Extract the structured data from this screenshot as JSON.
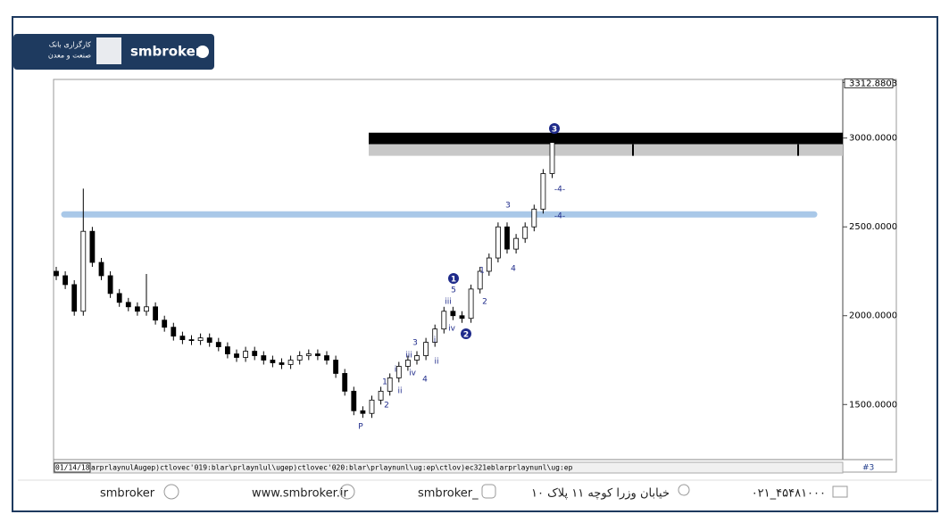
{
  "header": {
    "brand": "smbroker",
    "logo_text": "کارگزاری بانک",
    "logo_subtext": "صنعت و معدن"
  },
  "chart_data": {
    "type": "candlestick",
    "open": [
      2250,
      2225,
      2175,
      2025,
      2475,
      2300,
      2225,
      2125,
      2075,
      2050,
      2025,
      2050,
      1975,
      1935,
      1885,
      1865,
      1860,
      1875,
      1850,
      1825,
      1785,
      1765,
      1800,
      1775,
      1750,
      1735,
      1725,
      1750,
      1775,
      1785,
      1775,
      1750,
      1675,
      1575,
      1465,
      1450,
      1525,
      1575,
      1650,
      1715,
      1750,
      1775,
      1850,
      1925,
      2025,
      2000,
      1985,
      2150,
      2250,
      2325,
      2500,
      2375,
      2435,
      2500,
      2600,
      2800
    ],
    "high": [
      2275,
      2250,
      2200,
      2715,
      2500,
      2325,
      2250,
      2150,
      2100,
      2075,
      2235,
      2075,
      2000,
      1960,
      1910,
      1890,
      1900,
      1900,
      1875,
      1850,
      1810,
      1825,
      1825,
      1800,
      1775,
      1760,
      1775,
      1800,
      1810,
      1810,
      1800,
      1775,
      1700,
      1600,
      1490,
      1550,
      1600,
      1675,
      1740,
      1775,
      1800,
      1875,
      1950,
      2050,
      2050,
      2025,
      2175,
      2275,
      2350,
      2525,
      2525,
      2460,
      2525,
      2625,
      2825,
      3030
    ],
    "low": [
      2200,
      2150,
      2000,
      2000,
      2275,
      2200,
      2100,
      2050,
      2025,
      2000,
      2000,
      1950,
      1910,
      1860,
      1840,
      1835,
      1835,
      1825,
      1800,
      1760,
      1740,
      1740,
      1750,
      1725,
      1710,
      1700,
      1700,
      1725,
      1750,
      1750,
      1725,
      1650,
      1550,
      1440,
      1425,
      1425,
      1500,
      1550,
      1625,
      1690,
      1725,
      1750,
      1825,
      1900,
      1975,
      1960,
      1960,
      2125,
      2225,
      2300,
      2350,
      2350,
      2410,
      2475,
      2575,
      2775
    ],
    "close": [
      2225,
      2175,
      2025,
      2475,
      2300,
      2225,
      2125,
      2075,
      2050,
      2025,
      2050,
      1975,
      1935,
      1885,
      1865,
      1860,
      1875,
      1850,
      1825,
      1785,
      1765,
      1800,
      1775,
      1750,
      1735,
      1725,
      1750,
      1775,
      1785,
      1775,
      1750,
      1675,
      1575,
      1465,
      1450,
      1525,
      1575,
      1650,
      1715,
      1750,
      1775,
      1850,
      1925,
      2025,
      2000,
      1985,
      2150,
      2250,
      2325,
      2500,
      2375,
      2435,
      2500,
      2600,
      2800,
      2975
    ],
    "ylim": [
      1205,
      3312.8803
    ],
    "yticks": [
      {
        "value": 1500,
        "label": "1500.0000"
      },
      {
        "value": 2000,
        "label": "2000.0000"
      },
      {
        "value": 2500,
        "label": "2500.0000"
      },
      {
        "value": 3000,
        "label": "3000.0000"
      },
      3312.8803
    ],
    "zones": [
      {
        "from": 2965,
        "to": 3030,
        "color": "#000000"
      },
      {
        "from": 2900,
        "to": 2965,
        "color": "#c8c8c8"
      }
    ],
    "level": {
      "value": 2570,
      "color": "#a9c8e8"
    },
    "annotations": [
      "P",
      "2",
      "1",
      "ii",
      "i",
      "4",
      "iv",
      "iii",
      "3",
      "ii",
      "i",
      "iv",
      "iii",
      "5",
      "1",
      "2",
      "2",
      "1",
      "4",
      "3",
      "3",
      "-4-",
      "-4-"
    ],
    "x_start_label": "01/14/18",
    "x_axis_text": "arprlaynulAugep)ctlovec'019:blar\\prlaynlul\\ugep)ctlovec'020:blar\\prlaynunl\\ug:ep\\ctlov)ec321eblarprlaynunl\\ug:ep",
    "page_label": "#3"
  },
  "footer": {
    "telegram": "smbroker",
    "website": "www.smbroker.ir",
    "instagram": "smbroker_",
    "address": "خیابان وزرا کوچه ۱۱ پلاک ۱۰",
    "phone": "۰۲۱_۴۵۴۸۱۰۰۰"
  }
}
